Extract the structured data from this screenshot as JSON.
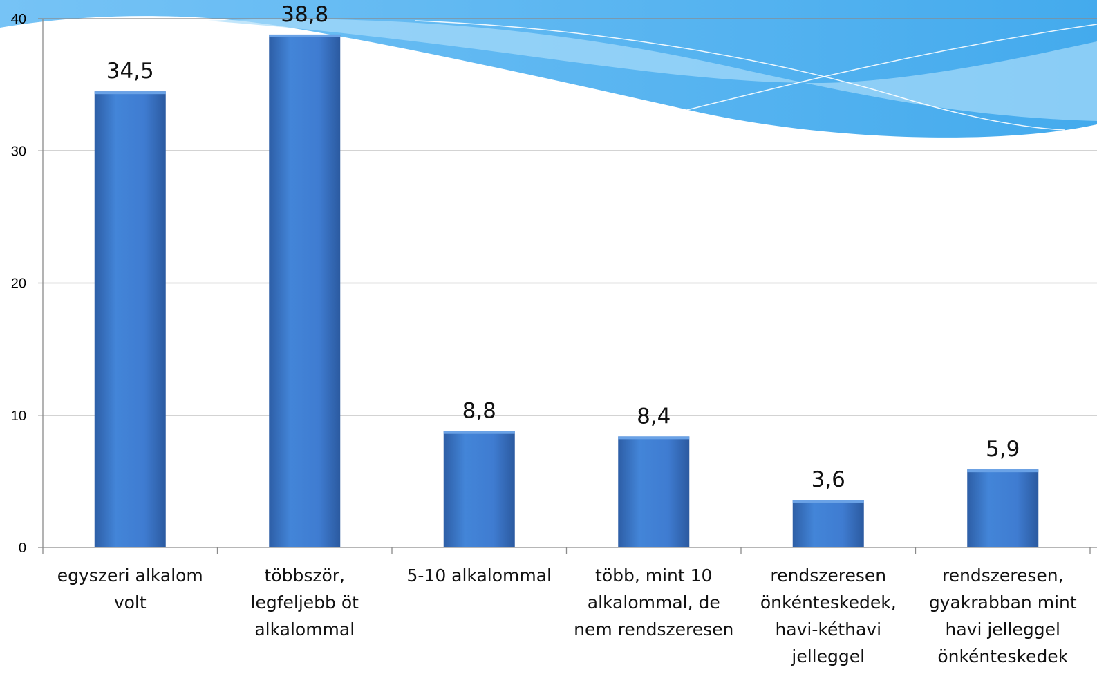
{
  "colors": {
    "bar": "#3f7cd1",
    "bar_dark": "#2b5aa0",
    "bar_top": "#6aa2e6",
    "grid": "#8a8a8a",
    "wave_light": "#8ccdf7",
    "wave_mid": "#5fb8f2",
    "wave_dark": "#37a3ea"
  },
  "chart_data": {
    "type": "bar",
    "categories": [
      [
        "egyszeri alkalom",
        "volt"
      ],
      [
        "többször,",
        "legfeljebb öt",
        "alkalommal"
      ],
      [
        "5-10 alkalommal"
      ],
      [
        "több, mint 10",
        "alkalommal, de",
        "nem rendszeresen"
      ],
      [
        "rendszeresen",
        "önkénteskedek,",
        "havi-kéthavi",
        "jelleggel"
      ],
      [
        "rendszeresen,",
        "gyakrabban mint",
        "havi jelleggel",
        "önkénteskedek"
      ]
    ],
    "values": [
      34.5,
      38.8,
      8.8,
      8.4,
      3.6,
      5.9
    ],
    "value_labels": [
      "34,5",
      "38,8",
      "8,8",
      "8,4",
      "3,6",
      "5,9"
    ],
    "ylim": [
      0,
      40
    ],
    "yticks": [
      0,
      10,
      20,
      30,
      40
    ],
    "ytick_labels": [
      "0",
      "10",
      "20",
      "30",
      "40"
    ],
    "grid": true,
    "title": "",
    "xlabel": "",
    "ylabel": ""
  }
}
